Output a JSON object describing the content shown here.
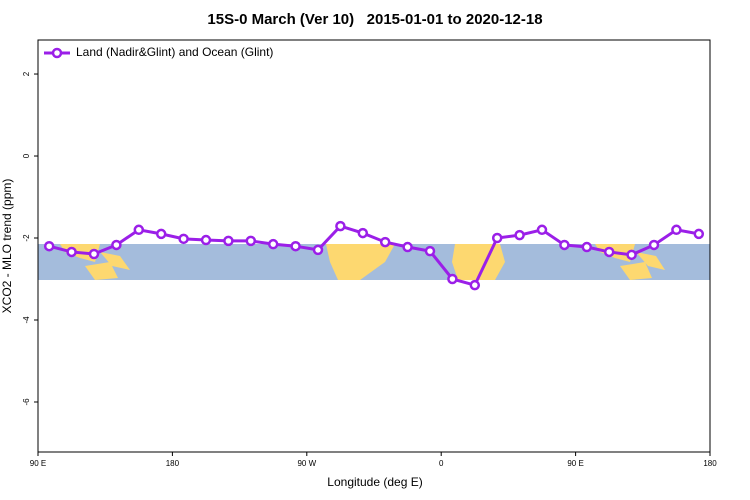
{
  "chart_data": {
    "type": "line",
    "title": "15S-0 March (Ver 10)   2015-01-01 to 2020-12-18",
    "x_label": "Longitude (deg E)",
    "y_label": "XCO2 - MLO trend (ppm)",
    "xlim": [
      90,
      540
    ],
    "ylim": [
      -7.22,
      2.83
    ],
    "xticks": [
      {
        "value": 90,
        "label": "90 E"
      },
      180,
      {
        "value": 270,
        "label": "90 W"
      },
      {
        "value": 360,
        "label": "0"
      },
      {
        "value": 450,
        "label": "90 E"
      },
      {
        "value": 540,
        "label": "180"
      }
    ],
    "yticks": [
      2,
      0,
      -2,
      -4,
      -6
    ],
    "legend": "top-left",
    "x": [
      97.5,
      112.5,
      127.5,
      142.5,
      157.5,
      172.5,
      187.5,
      202.5,
      217.5,
      232.5,
      247.5,
      262.5,
      277.5,
      292.5,
      307.5,
      322.5,
      337.5,
      352.5,
      367.5,
      382.5,
      397.5,
      412.5,
      427.5,
      442.5,
      457.5,
      472.5,
      487.5,
      502.5,
      517.5,
      532.5
    ],
    "series": [
      {
        "name": "Land (Nadir&Glint) and Ocean (Glint)",
        "color": "#9b1fe8",
        "values": [
          -2.2,
          -2.34,
          -2.39,
          -2.17,
          -1.8,
          -1.9,
          -2.02,
          -2.05,
          -2.07,
          -2.07,
          -2.15,
          -2.2,
          -2.29,
          -1.71,
          -1.88,
          -2.1,
          -2.22,
          -2.32,
          -3.0,
          -3.15,
          -2.0,
          -1.93,
          -1.8,
          -2.17,
          -2.22,
          -2.34,
          -2.41,
          -2.17,
          -1.8,
          -1.9
        ]
      }
    ]
  }
}
